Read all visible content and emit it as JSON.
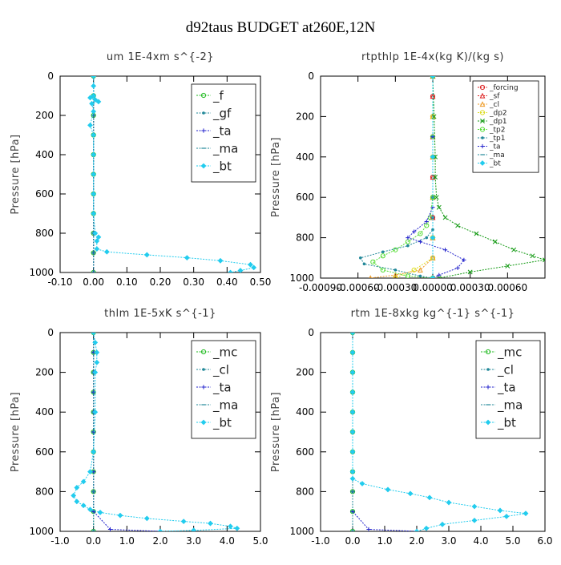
{
  "figure_title": "d92taus  BUDGET at260E,12N",
  "colors": {
    "green": "#22bb22",
    "teal": "#228899",
    "blue": "#2222cc",
    "cyan": "#22ccee",
    "red": "#dd2222",
    "orange": "#ee9922",
    "yellow": "#dddd22",
    "lime": "#55dd33",
    "darkgreen": "#119911",
    "axis": "#000000"
  },
  "chart_data": [
    {
      "id": "um",
      "type": "line",
      "title": "um   1E-4xm  s^{-2}",
      "xlabel": "",
      "ylabel": "Pressure [hPa]",
      "xlim": [
        -0.1,
        0.5
      ],
      "ylim": [
        1000,
        0
      ],
      "xticks": [
        -0.1,
        0.0,
        0.1,
        0.2,
        0.3,
        0.4,
        0.5
      ],
      "xtick_labels": [
        "-0.10",
        "0.00",
        "0.10",
        "0.20",
        "0.30",
        "0.40",
        "0.50"
      ],
      "yticks": [
        0,
        200,
        400,
        600,
        800,
        1000
      ],
      "ytick_labels": [
        "0",
        "200",
        "400",
        "600",
        "800",
        "1000"
      ],
      "legend_position": "top-right",
      "legend_style": "large",
      "series": [
        {
          "name": "_f",
          "color": "#22bb22",
          "marker": "circle",
          "x": [
            0,
            0,
            0,
            0,
            0,
            0,
            0,
            0,
            0,
            0,
            0
          ],
          "y": [
            0,
            100,
            200,
            300,
            400,
            500,
            600,
            700,
            800,
            900,
            1000
          ]
        },
        {
          "name": "_gf",
          "color": "#228899",
          "marker": "dot",
          "x": [
            0,
            0,
            0,
            0,
            0,
            0,
            0,
            0,
            0,
            0,
            0
          ],
          "y": [
            0,
            100,
            200,
            300,
            400,
            500,
            600,
            700,
            800,
            900,
            1000
          ]
        },
        {
          "name": "_ta",
          "color": "#2222cc",
          "marker": "plus",
          "x": [
            0,
            0,
            0,
            0,
            0,
            0,
            0,
            0,
            0,
            0,
            0
          ],
          "y": [
            0,
            100,
            200,
            300,
            400,
            500,
            600,
            700,
            800,
            900,
            1000
          ]
        },
        {
          "name": "_ma",
          "color": "#228899",
          "marker": "dash",
          "x": [
            0,
            0,
            0,
            0,
            0,
            0,
            0,
            0,
            0,
            0,
            0
          ],
          "y": [
            0,
            100,
            200,
            300,
            400,
            500,
            600,
            700,
            800,
            900,
            1000
          ]
        },
        {
          "name": "_bt",
          "color": "#22ccee",
          "marker": "diamond",
          "x": [
            0,
            0,
            0,
            -0.01,
            0.005,
            0.015,
            -0.005,
            0,
            -0.01,
            0,
            0,
            0,
            0,
            0,
            0.005,
            0.015,
            0.01,
            0.01,
            0.04,
            0.16,
            0.28,
            0.38,
            0.47,
            0.48,
            0.44,
            0.41
          ],
          "y": [
            0,
            50,
            100,
            110,
            120,
            130,
            140,
            180,
            250,
            300,
            400,
            500,
            600,
            700,
            800,
            820,
            840,
            880,
            895,
            910,
            925,
            940,
            960,
            975,
            990,
            1000
          ]
        }
      ]
    },
    {
      "id": "rtpthlp",
      "type": "line",
      "title": "rtpthlp   1E-4x(kg K)/(kg s)",
      "xlabel": "",
      "ylabel": "Pressure [hPa]",
      "xlim": [
        -0.0009,
        0.0009
      ],
      "ylim": [
        1000,
        0
      ],
      "xticks": [
        -0.0009,
        -0.0006,
        -0.0003,
        0.0,
        0.0003,
        0.0006
      ],
      "xtick_labels": [
        "-0.00090",
        "-0.00060",
        "-0.00030",
        "0.00000",
        "0.00030",
        "0.00060"
      ],
      "yticks": [
        0,
        200,
        400,
        600,
        800,
        1000
      ],
      "ytick_labels": [
        "0",
        "200",
        "400",
        "600",
        "800",
        "1000"
      ],
      "legend_position": "top-right",
      "legend_style": "small",
      "series": [
        {
          "name": "_forcing",
          "color": "#dd2222",
          "marker": "circle",
          "x": [
            0,
            0,
            0,
            0,
            0,
            0,
            0,
            0,
            0,
            0,
            0
          ],
          "y": [
            0,
            100,
            200,
            300,
            400,
            500,
            600,
            700,
            800,
            900,
            1000
          ]
        },
        {
          "name": "_sf",
          "color": "#dd2222",
          "marker": "triangle",
          "x": [
            0,
            0,
            0,
            0,
            0,
            0,
            0,
            0,
            0,
            0,
            0
          ],
          "y": [
            0,
            100,
            200,
            300,
            400,
            500,
            600,
            700,
            800,
            900,
            1000
          ]
        },
        {
          "name": "_cl",
          "color": "#ee9922",
          "marker": "triangle",
          "x": [
            0,
            0,
            0,
            0,
            0,
            0,
            -0.0001,
            -0.0003,
            -0.0005
          ],
          "y": [
            0,
            200,
            400,
            600,
            800,
            900,
            960,
            985,
            1000
          ]
        },
        {
          "name": "_dp2",
          "color": "#dddd22",
          "marker": "circle",
          "x": [
            0,
            0,
            0,
            0,
            0,
            0,
            -0.00015,
            -0.0003
          ],
          "y": [
            0,
            200,
            400,
            600,
            800,
            900,
            960,
            1000
          ]
        },
        {
          "name": "_dp1",
          "color": "#119911",
          "marker": "x",
          "x": [
            0,
            1e-05,
            2e-05,
            2e-05,
            3e-05,
            5e-05,
            0.0001,
            0.0002,
            0.00035,
            0.0005,
            0.00065,
            0.0008,
            0.0009,
            0.0006,
            0.0003,
            5e-05
          ],
          "y": [
            0,
            200,
            400,
            500,
            600,
            650,
            700,
            740,
            780,
            820,
            860,
            890,
            910,
            940,
            970,
            1000
          ]
        },
        {
          "name": "_tp2",
          "color": "#55dd33",
          "marker": "circle",
          "x": [
            0,
            0,
            0,
            -2e-05,
            -5e-05,
            -0.0001,
            -0.0002,
            -0.0003,
            -0.0004,
            -0.00048,
            -0.0004,
            -0.0002,
            0
          ],
          "y": [
            0,
            300,
            600,
            700,
            740,
            780,
            820,
            860,
            890,
            920,
            960,
            990,
            1000
          ]
        },
        {
          "name": "_tp1",
          "color": "#228899",
          "marker": "dot",
          "x": [
            0,
            0,
            0,
            0,
            0,
            -5e-05,
            -0.0002,
            -0.0004,
            -0.00058,
            -0.00055,
            -0.0003,
            -0.0001,
            0
          ],
          "y": [
            0,
            300,
            600,
            700,
            760,
            800,
            840,
            870,
            900,
            930,
            960,
            990,
            1000
          ]
        },
        {
          "name": "_ta",
          "color": "#2222cc",
          "marker": "plus",
          "x": [
            0,
            0,
            0,
            -5e-05,
            -0.00015,
            -0.0002,
            -0.0001,
            0.0001,
            0.00025,
            0.0002,
            5e-05,
            0
          ],
          "y": [
            0,
            300,
            650,
            720,
            770,
            800,
            820,
            860,
            910,
            950,
            985,
            1000
          ]
        },
        {
          "name": "_ma",
          "color": "#228899",
          "marker": "dash",
          "x": [
            0,
            0,
            0,
            0
          ],
          "y": [
            0,
            400,
            800,
            1000
          ]
        },
        {
          "name": "_bt",
          "color": "#22ccee",
          "marker": "diamond",
          "x": [
            0,
            0,
            0,
            0
          ],
          "y": [
            0,
            400,
            800,
            1000
          ]
        }
      ]
    },
    {
      "id": "thlm",
      "type": "line",
      "title": "thlm   1E-5xK  s^{-1}",
      "xlabel": "",
      "ylabel": "Pressure [hPa]",
      "xlim": [
        -1.0,
        5.0
      ],
      "ylim": [
        1000,
        0
      ],
      "xticks": [
        -1,
        0,
        1,
        2,
        3,
        4,
        5
      ],
      "xtick_labels": [
        "-1.0",
        "0.0",
        "1.0",
        "2.0",
        "3.0",
        "4.0",
        "5.0"
      ],
      "yticks": [
        0,
        200,
        400,
        600,
        800,
        1000
      ],
      "ytick_labels": [
        "0",
        "200",
        "400",
        "600",
        "800",
        "1000"
      ],
      "legend_position": "top-right",
      "legend_style": "large",
      "series": [
        {
          "name": "_mc",
          "color": "#22bb22",
          "marker": "circle",
          "x": [
            0,
            0,
            0,
            0,
            0,
            0,
            0,
            0,
            0,
            0,
            0
          ],
          "y": [
            0,
            100,
            200,
            300,
            400,
            500,
            600,
            700,
            800,
            900,
            1000
          ]
        },
        {
          "name": "_cl",
          "color": "#228899",
          "marker": "dot",
          "x": [
            0,
            0,
            0,
            0,
            0,
            0,
            0,
            0,
            0,
            0,
            0
          ],
          "y": [
            0,
            100,
            200,
            300,
            400,
            500,
            600,
            700,
            800,
            900,
            1000
          ]
        },
        {
          "name": "_ta",
          "color": "#2222cc",
          "marker": "plus",
          "x": [
            0,
            0,
            0,
            0,
            0,
            0,
            0,
            0,
            0,
            0,
            0.5,
            2.0
          ],
          "y": [
            0,
            100,
            200,
            300,
            400,
            500,
            600,
            700,
            800,
            900,
            990,
            1000
          ]
        },
        {
          "name": "_ma",
          "color": "#228899",
          "marker": "dash",
          "x": [
            0,
            0,
            0,
            0,
            0,
            0
          ],
          "y": [
            0,
            200,
            400,
            600,
            800,
            1000
          ]
        },
        {
          "name": "_bt",
          "color": "#22ccee",
          "marker": "diamond",
          "x": [
            0,
            0.05,
            0.1,
            0.1,
            0.05,
            0.05,
            0,
            -0.1,
            -0.3,
            -0.5,
            -0.6,
            -0.5,
            -0.3,
            -0.1,
            0.2,
            0.8,
            1.6,
            2.7,
            3.5,
            4.1,
            4.3,
            3.0,
            2.0
          ],
          "y": [
            0,
            50,
            100,
            150,
            200,
            400,
            600,
            700,
            750,
            780,
            820,
            850,
            870,
            890,
            905,
            920,
            935,
            950,
            960,
            975,
            985,
            995,
            1000
          ]
        }
      ]
    },
    {
      "id": "rtm",
      "type": "line",
      "title": "rtm   1E-8xkg  kg^{-1}  s^{-1}",
      "xlabel": "",
      "ylabel": "Pressure [hPa]",
      "xlim": [
        -1.0,
        6.0
      ],
      "ylim": [
        1000,
        0
      ],
      "xticks": [
        -1,
        0,
        1,
        2,
        3,
        4,
        5,
        6
      ],
      "xtick_labels": [
        "-1.0",
        "0.0",
        "1.0",
        "2.0",
        "3.0",
        "4.0",
        "5.0",
        "6.0"
      ],
      "yticks": [
        0,
        200,
        400,
        600,
        800,
        1000
      ],
      "ytick_labels": [
        "0",
        "200",
        "400",
        "600",
        "800",
        "1000"
      ],
      "legend_position": "top-right",
      "legend_style": "large",
      "series": [
        {
          "name": "_mc",
          "color": "#22bb22",
          "marker": "circle",
          "x": [
            0,
            0,
            0,
            0,
            0,
            0,
            0,
            0,
            0,
            0,
            0
          ],
          "y": [
            0,
            100,
            200,
            300,
            400,
            500,
            600,
            700,
            800,
            900,
            1000
          ]
        },
        {
          "name": "_cl",
          "color": "#228899",
          "marker": "dot",
          "x": [
            0,
            0,
            0,
            0,
            0,
            0,
            0,
            0,
            0,
            0,
            0
          ],
          "y": [
            0,
            100,
            200,
            300,
            400,
            500,
            600,
            700,
            800,
            900,
            1000
          ]
        },
        {
          "name": "_ta",
          "color": "#2222cc",
          "marker": "plus",
          "x": [
            0,
            0,
            0,
            0,
            0,
            0,
            0,
            0,
            0,
            0,
            0.5,
            2.0
          ],
          "y": [
            0,
            100,
            200,
            300,
            400,
            500,
            600,
            700,
            800,
            900,
            990,
            1000
          ]
        },
        {
          "name": "_ma",
          "color": "#228899",
          "marker": "dash",
          "x": [
            0,
            0,
            0,
            0,
            0,
            0
          ],
          "y": [
            0,
            200,
            400,
            600,
            800,
            1000
          ]
        },
        {
          "name": "_bt",
          "color": "#22ccee",
          "marker": "diamond",
          "x": [
            0,
            0,
            0,
            0,
            0,
            0,
            0,
            0,
            0,
            0.3,
            1.1,
            1.8,
            2.4,
            3.0,
            3.8,
            4.6,
            5.4,
            4.8,
            3.8,
            2.8,
            2.3,
            2.0
          ],
          "y": [
            0,
            100,
            200,
            300,
            400,
            500,
            600,
            700,
            735,
            760,
            790,
            810,
            830,
            855,
            875,
            895,
            910,
            925,
            945,
            965,
            985,
            1000
          ]
        }
      ]
    }
  ]
}
